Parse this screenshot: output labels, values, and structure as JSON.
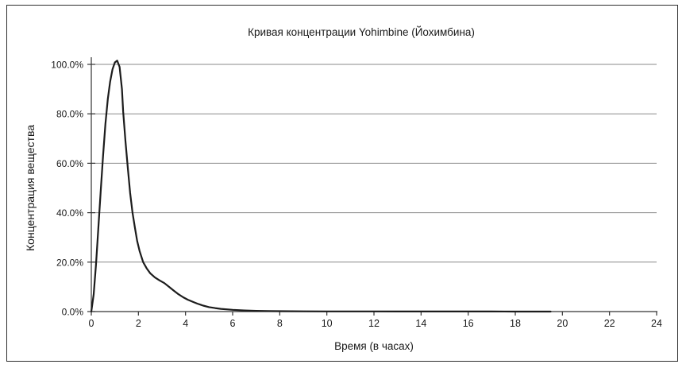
{
  "chart_data": {
    "type": "line",
    "title": "Кривая концентрации Yohimbine (Йохимбина)",
    "xlabel": "Время (в часах)",
    "ylabel": "Концентрация вещества",
    "xlim": [
      0,
      24
    ],
    "ylim_percent": [
      0,
      100
    ],
    "grid": "horizontal-only",
    "legend_position": "none",
    "x_ticks": [
      0,
      2,
      4,
      6,
      8,
      10,
      12,
      14,
      16,
      18,
      20,
      22,
      24
    ],
    "y_ticks": [
      {
        "value": 0,
        "label": "0.0%"
      },
      {
        "value": 20,
        "label": "20.0%"
      },
      {
        "value": 40,
        "label": "40.0%"
      },
      {
        "value": 60,
        "label": "60.0%"
      },
      {
        "value": 80,
        "label": "80.0%"
      },
      {
        "value": 100,
        "label": "100.0%"
      }
    ],
    "peak": {
      "time_hours": 1.1,
      "value_percent": 101.5
    },
    "curve_end_hours": 19.5,
    "points": [
      [
        0,
        0
      ],
      [
        0.1,
        7
      ],
      [
        0.2,
        19
      ],
      [
        0.3,
        34
      ],
      [
        0.4,
        49
      ],
      [
        0.5,
        63
      ],
      [
        0.6,
        76
      ],
      [
        0.7,
        86
      ],
      [
        0.8,
        93
      ],
      [
        0.9,
        98
      ],
      [
        1.0,
        100.8
      ],
      [
        1.1,
        101.5
      ],
      [
        1.2,
        99
      ],
      [
        1.3,
        90
      ],
      [
        1.35,
        81
      ],
      [
        1.45,
        69
      ],
      [
        1.55,
        58
      ],
      [
        1.65,
        48
      ],
      [
        1.75,
        40
      ],
      [
        1.85,
        34
      ],
      [
        1.95,
        28.5
      ],
      [
        2.05,
        24.5
      ],
      [
        2.2,
        20
      ],
      [
        2.35,
        17.5
      ],
      [
        2.5,
        15.5
      ],
      [
        2.7,
        13.8
      ],
      [
        2.9,
        12.6
      ],
      [
        3.1,
        11.5
      ],
      [
        3.3,
        10
      ],
      [
        3.5,
        8.5
      ],
      [
        3.7,
        7
      ],
      [
        3.9,
        5.8
      ],
      [
        4.1,
        4.8
      ],
      [
        4.3,
        4
      ],
      [
        4.5,
        3.2
      ],
      [
        4.75,
        2.4
      ],
      [
        5.0,
        1.8
      ],
      [
        5.25,
        1.4
      ],
      [
        5.5,
        1.1
      ],
      [
        6.0,
        0.7
      ],
      [
        6.5,
        0.45
      ],
      [
        7.0,
        0.3
      ],
      [
        7.5,
        0.2
      ],
      [
        8.0,
        0.15
      ],
      [
        9.0,
        0.1
      ],
      [
        10.0,
        0.08
      ],
      [
        11.0,
        0.06
      ],
      [
        12.0,
        0.05
      ],
      [
        13.0,
        0.04
      ],
      [
        14.0,
        0.03
      ],
      [
        15.0,
        0.03
      ],
      [
        16.0,
        0.02
      ],
      [
        17.0,
        0.02
      ],
      [
        18.0,
        0.01
      ],
      [
        19.0,
        0.01
      ],
      [
        19.5,
        0
      ]
    ],
    "colors": {
      "curve": "#1c1c1c",
      "grid": "#8a8a8a",
      "axis": "#333333",
      "text": "#1a1a1a",
      "background": "#ffffff",
      "border": "#2e2e2e"
    }
  }
}
